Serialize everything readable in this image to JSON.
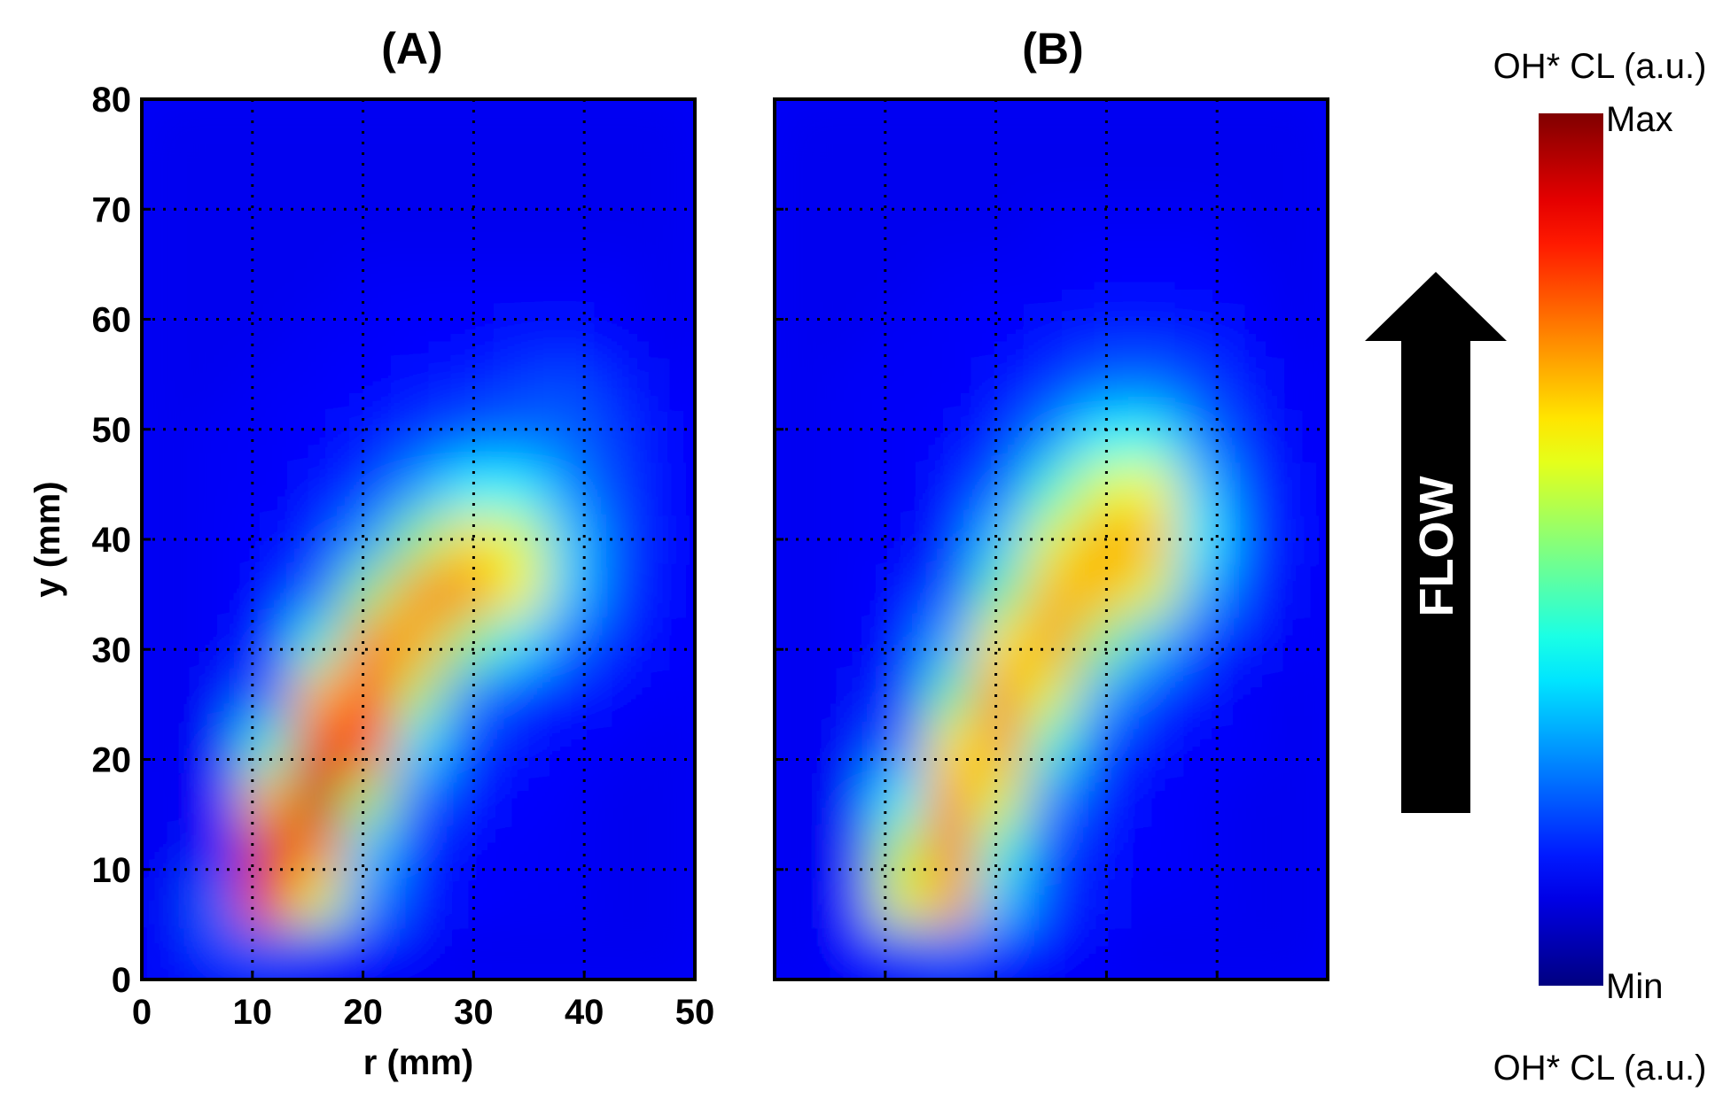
{
  "chart_data": [
    {
      "type": "heatmap",
      "panel_label": "(A)",
      "xlabel": "r (mm)",
      "ylabel": "y (mm)",
      "xlim": [
        0,
        50
      ],
      "ylim": [
        0,
        80
      ],
      "xticks": [
        0,
        10,
        20,
        30,
        40,
        50
      ],
      "yticks": [
        0,
        10,
        20,
        30,
        40,
        50,
        60,
        70,
        80
      ],
      "grid": true,
      "colormap": "jet",
      "values": [
        [
          2,
          10,
          14,
          8,
          3,
          2,
          1,
          1,
          1,
          1,
          1
        ],
        [
          1,
          14,
          82,
          55,
          18,
          6,
          3,
          2,
          2,
          1,
          1
        ],
        [
          1,
          6,
          90,
          72,
          25,
          7,
          3,
          2,
          2,
          1,
          1
        ],
        [
          1,
          3,
          65,
          94,
          50,
          14,
          5,
          3,
          2,
          1,
          1
        ],
        [
          1,
          2,
          35,
          88,
          78,
          28,
          9,
          4,
          3,
          2,
          1
        ],
        [
          1,
          2,
          14,
          65,
          85,
          50,
          18,
          8,
          5,
          3,
          2
        ],
        [
          1,
          2,
          6,
          35,
          72,
          68,
          45,
          28,
          14,
          6,
          3
        ],
        [
          1,
          2,
          3,
          14,
          45,
          70,
          72,
          58,
          25,
          9,
          3
        ],
        [
          1,
          2,
          3,
          7,
          20,
          45,
          62,
          55,
          25,
          10,
          3
        ],
        [
          1,
          2,
          2,
          4,
          9,
          20,
          30,
          30,
          18,
          9,
          3
        ],
        [
          1,
          2,
          2,
          3,
          5,
          9,
          13,
          15,
          14,
          8,
          3
        ],
        [
          1,
          1,
          2,
          2,
          3,
          4,
          6,
          9,
          11,
          6,
          2
        ],
        [
          1,
          1,
          1,
          2,
          2,
          3,
          3,
          4,
          4,
          3,
          1
        ],
        [
          1,
          1,
          1,
          1,
          2,
          2,
          2,
          2,
          2,
          2,
          1
        ],
        [
          1,
          1,
          1,
          1,
          1,
          1,
          1,
          1,
          1,
          1,
          1
        ],
        [
          1,
          1,
          1,
          1,
          1,
          1,
          1,
          1,
          1,
          1,
          1
        ],
        [
          1,
          1,
          1,
          1,
          1,
          1,
          1,
          1,
          1,
          1,
          1
        ]
      ]
    },
    {
      "type": "heatmap",
      "panel_label": "(B)",
      "xlim": [
        0,
        50
      ],
      "ylim": [
        0,
        80
      ],
      "grid": true,
      "colormap": "jet",
      "values": [
        [
          1,
          3,
          10,
          16,
          8,
          3,
          2,
          1,
          1,
          1,
          1
        ],
        [
          1,
          3,
          55,
          68,
          25,
          8,
          4,
          2,
          2,
          1,
          1
        ],
        [
          1,
          2,
          50,
          74,
          35,
          10,
          4,
          3,
          2,
          1,
          1
        ],
        [
          1,
          2,
          30,
          72,
          55,
          18,
          6,
          3,
          2,
          1,
          1
        ],
        [
          1,
          2,
          15,
          60,
          70,
          35,
          10,
          4,
          3,
          2,
          1
        ],
        [
          1,
          2,
          8,
          40,
          72,
          55,
          22,
          9,
          4,
          2,
          1
        ],
        [
          1,
          2,
          4,
          22,
          60,
          70,
          45,
          24,
          9,
          4,
          2
        ],
        [
          1,
          2,
          3,
          12,
          40,
          66,
          66,
          55,
          22,
          7,
          2
        ],
        [
          1,
          2,
          2,
          6,
          25,
          55,
          68,
          66,
          30,
          9,
          3
        ],
        [
          1,
          2,
          2,
          4,
          14,
          35,
          55,
          58,
          25,
          8,
          3
        ],
        [
          1,
          2,
          2,
          3,
          7,
          18,
          30,
          32,
          16,
          6,
          2
        ],
        [
          1,
          2,
          2,
          2,
          4,
          8,
          14,
          15,
          10,
          4,
          2
        ],
        [
          1,
          1,
          2,
          2,
          3,
          4,
          6,
          6,
          5,
          3,
          1
        ],
        [
          1,
          1,
          1,
          2,
          2,
          2,
          3,
          3,
          3,
          2,
          1
        ],
        [
          1,
          1,
          1,
          1,
          1,
          2,
          2,
          2,
          2,
          1,
          1
        ],
        [
          1,
          1,
          1,
          1,
          1,
          1,
          1,
          1,
          1,
          1,
          1
        ],
        [
          1,
          1,
          1,
          1,
          1,
          1,
          1,
          1,
          1,
          1,
          1
        ]
      ]
    }
  ],
  "colorbar": {
    "title": "OH* CL (a.u.)",
    "bottom_title": "OH* CL (a.u.)",
    "max_label": "Max",
    "min_label": "Min"
  },
  "flow_arrow": {
    "label": "FLOW",
    "direction": "up",
    "color": "#000000",
    "text_color": "#ffffff"
  }
}
